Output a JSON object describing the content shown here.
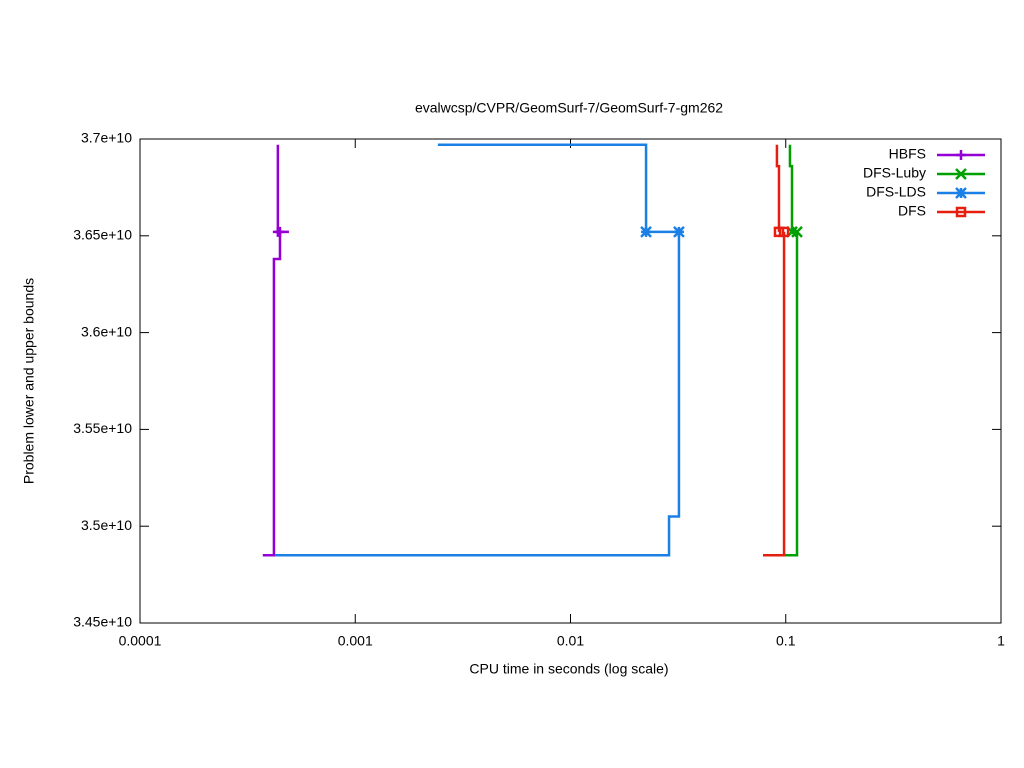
{
  "chart_data": {
    "type": "line",
    "title": "evalwcsp/CVPR/GeomSurf-7/GeomSurf-7-gm262",
    "x_label": "CPU time in seconds (log scale)",
    "y_label": "Problem lower and upper bounds",
    "x_scale": "log",
    "xlim": [
      0.0001,
      1
    ],
    "xticks": [
      0.0001,
      0.001,
      0.01,
      0.1,
      1
    ],
    "ylim": [
      34500000000,
      37000000000
    ],
    "yticks": [
      {
        "value": 34500000000,
        "label": "3.45e+10"
      },
      {
        "value": 35000000000,
        "label": "3.5e+10"
      },
      {
        "value": 35500000000,
        "label": "3.55e+10"
      },
      {
        "value": 36000000000,
        "label": "3.6e+10"
      },
      {
        "value": 36500000000,
        "label": "3.65e+10"
      },
      {
        "value": 37000000000,
        "label": "3.7e+10"
      }
    ],
    "legend": "top-right",
    "series": [
      {
        "name": "HBFS",
        "color": "#9400d3",
        "marker": "plus",
        "x": [
          0.000437,
          0.000437,
          null,
          0.000372,
          0.000419,
          0.000419,
          0.000447,
          0.000447,
          0.000492
        ],
        "values": [
          36970000000,
          36520000000,
          null,
          34850000000,
          34850000000,
          36380000000,
          36380000000,
          36520000000,
          36520000000
        ]
      },
      {
        "name": "DFS-Luby",
        "color": "#00a000",
        "marker": "cross",
        "x": [
          0.1046,
          0.1046,
          0.1069,
          0.1069,
          0.1128,
          null,
          0.0992,
          0.1128,
          0.1128
        ],
        "values": [
          36970000000,
          36860000000,
          36860000000,
          36520000000,
          36520000000,
          null,
          34850000000,
          34850000000,
          36520000000
        ]
      },
      {
        "name": "DFS-LDS",
        "color": "#1a80e6",
        "marker": "asterisk",
        "x": [
          0.00242,
          0.02244,
          0.02244,
          0.0319,
          null,
          0.000424,
          0.02869,
          0.02869,
          0.0319,
          0.0319
        ],
        "values": [
          36970000000,
          36970000000,
          36520000000,
          36520000000,
          null,
          34850000000,
          34850000000,
          35050000000,
          35050000000,
          36520000000
        ]
      },
      {
        "name": "DFS",
        "color": "#e51e10",
        "marker": "square",
        "x": [
          0.091,
          0.091,
          0.093,
          0.093,
          null,
          0.0784,
          0.0982,
          0.0982
        ],
        "values": [
          36970000000,
          36860000000,
          36860000000,
          36520000000,
          null,
          34850000000,
          34850000000,
          36520000000
        ]
      }
    ]
  }
}
